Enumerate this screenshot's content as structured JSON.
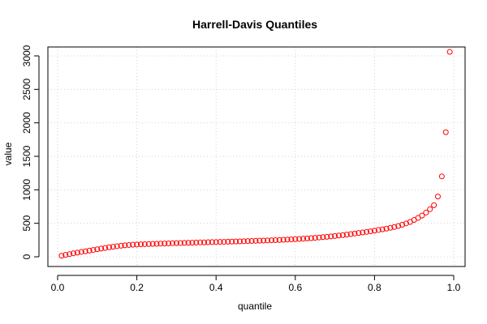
{
  "chart_data": {
    "type": "scatter",
    "title": "Harrell-Davis Quantiles",
    "xlabel": "quantile",
    "ylabel": "value",
    "xlim": [
      0.0,
      1.0
    ],
    "ylim": [
      0,
      3100
    ],
    "x_ticks": [
      0.0,
      0.2,
      0.4,
      0.6,
      0.8,
      1.0
    ],
    "x_tick_labels": [
      "0.0",
      "0.2",
      "0.4",
      "0.6",
      "0.8",
      "1.0"
    ],
    "y_ticks": [
      0,
      500,
      1000,
      1500,
      2000,
      2500,
      3000
    ],
    "y_tick_labels": [
      "0",
      "500",
      "1000",
      "1500",
      "2000",
      "2500",
      "3000"
    ],
    "grid": true,
    "point_color": "#ff0000",
    "series": [
      {
        "x": [
          0.01,
          0.02,
          0.03,
          0.04,
          0.05,
          0.06,
          0.07,
          0.08,
          0.09,
          0.1,
          0.11,
          0.12,
          0.13,
          0.14,
          0.15,
          0.16,
          0.17,
          0.18,
          0.19,
          0.2,
          0.21,
          0.22,
          0.23,
          0.24,
          0.25,
          0.26,
          0.27,
          0.28,
          0.29,
          0.3,
          0.31,
          0.32,
          0.33,
          0.34,
          0.35,
          0.36,
          0.37,
          0.38,
          0.39,
          0.4,
          0.41,
          0.42,
          0.43,
          0.44,
          0.45,
          0.46,
          0.47,
          0.48,
          0.49,
          0.5,
          0.51,
          0.52,
          0.53,
          0.54,
          0.55,
          0.56,
          0.57,
          0.58,
          0.59,
          0.6,
          0.61,
          0.62,
          0.63,
          0.64,
          0.65,
          0.66,
          0.67,
          0.68,
          0.69,
          0.7,
          0.71,
          0.72,
          0.73,
          0.74,
          0.75,
          0.76,
          0.77,
          0.78,
          0.79,
          0.8,
          0.81,
          0.82,
          0.83,
          0.84,
          0.85,
          0.86,
          0.87,
          0.88,
          0.89,
          0.9,
          0.91,
          0.92,
          0.93,
          0.94,
          0.95,
          0.96,
          0.97,
          0.98,
          0.99
        ],
        "y": [
          15,
          28,
          40,
          52,
          62,
          72,
          82,
          92,
          102,
          112,
          122,
          132,
          142,
          150,
          158,
          165,
          171,
          176,
          180,
          183,
          186,
          188,
          190,
          192,
          194,
          196,
          198,
          200,
          202,
          204,
          205,
          207,
          209,
          210,
          212,
          214,
          215,
          217,
          219,
          220,
          222,
          223,
          225,
          227,
          228,
          230,
          232,
          234,
          236,
          238,
          240,
          242,
          244,
          246,
          248,
          251,
          254,
          257,
          260,
          263,
          266,
          270,
          274,
          278,
          283,
          288,
          293,
          298,
          304,
          310,
          317,
          324,
          331,
          339,
          347,
          355,
          363,
          371,
          380,
          390,
          400,
          410,
          420,
          432,
          445,
          460,
          478,
          498,
          520,
          550,
          580,
          615,
          660,
          710,
          770,
          900,
          1200,
          1860,
          3060
        ]
      }
    ]
  }
}
